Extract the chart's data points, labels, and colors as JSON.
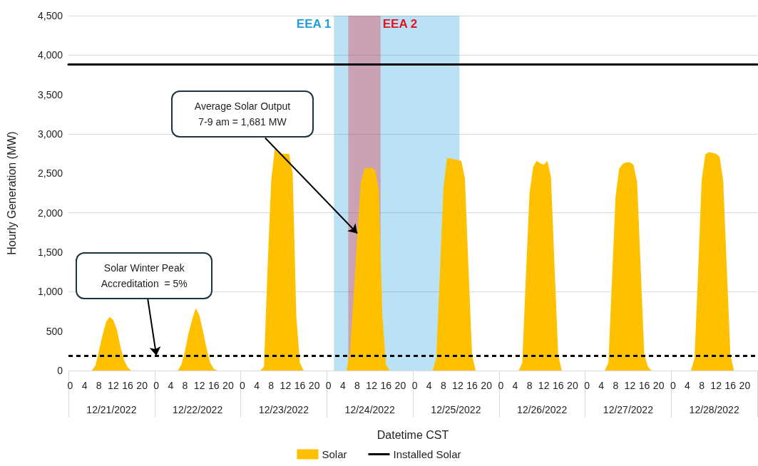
{
  "chart_data": {
    "type": "area",
    "xlabel": "Datetime CST",
    "ylabel": "Hourly Generation (MW)",
    "x": [
      "2022-12-21T00:00",
      "2022-12-21T01:00",
      "2022-12-21T02:00",
      "2022-12-21T03:00",
      "2022-12-21T04:00",
      "2022-12-21T05:00",
      "2022-12-21T06:00",
      "2022-12-21T07:00",
      "2022-12-21T08:00",
      "2022-12-21T09:00",
      "2022-12-21T10:00",
      "2022-12-21T11:00",
      "2022-12-21T12:00",
      "2022-12-21T13:00",
      "2022-12-21T14:00",
      "2022-12-21T15:00",
      "2022-12-21T16:00",
      "2022-12-21T17:00",
      "2022-12-21T18:00",
      "2022-12-21T19:00",
      "2022-12-21T20:00",
      "2022-12-21T21:00",
      "2022-12-21T22:00",
      "2022-12-21T23:00",
      "2022-12-22T00:00",
      "2022-12-22T01:00",
      "2022-12-22T02:00",
      "2022-12-22T03:00",
      "2022-12-22T04:00",
      "2022-12-22T05:00",
      "2022-12-22T06:00",
      "2022-12-22T07:00",
      "2022-12-22T08:00",
      "2022-12-22T09:00",
      "2022-12-22T10:00",
      "2022-12-22T11:00",
      "2022-12-22T12:00",
      "2022-12-22T13:00",
      "2022-12-22T14:00",
      "2022-12-22T15:00",
      "2022-12-22T16:00",
      "2022-12-22T17:00",
      "2022-12-22T18:00",
      "2022-12-22T19:00",
      "2022-12-22T20:00",
      "2022-12-22T21:00",
      "2022-12-22T22:00",
      "2022-12-22T23:00",
      "2022-12-23T00:00",
      "2022-12-23T01:00",
      "2022-12-23T02:00",
      "2022-12-23T03:00",
      "2022-12-23T04:00",
      "2022-12-23T05:00",
      "2022-12-23T06:00",
      "2022-12-23T07:00",
      "2022-12-23T08:00",
      "2022-12-23T09:00",
      "2022-12-23T10:00",
      "2022-12-23T11:00",
      "2022-12-23T12:00",
      "2022-12-23T13:00",
      "2022-12-23T14:00",
      "2022-12-23T15:00",
      "2022-12-23T16:00",
      "2022-12-23T17:00",
      "2022-12-23T18:00",
      "2022-12-23T19:00",
      "2022-12-23T20:00",
      "2022-12-23T21:00",
      "2022-12-23T22:00",
      "2022-12-23T23:00",
      "2022-12-24T00:00",
      "2022-12-24T01:00",
      "2022-12-24T02:00",
      "2022-12-24T03:00",
      "2022-12-24T04:00",
      "2022-12-24T05:00",
      "2022-12-24T06:00",
      "2022-12-24T07:00",
      "2022-12-24T08:00",
      "2022-12-24T09:00",
      "2022-12-24T10:00",
      "2022-12-24T11:00",
      "2022-12-24T12:00",
      "2022-12-24T13:00",
      "2022-12-24T14:00",
      "2022-12-24T15:00",
      "2022-12-24T16:00",
      "2022-12-24T17:00",
      "2022-12-24T18:00",
      "2022-12-24T19:00",
      "2022-12-24T20:00",
      "2022-12-24T21:00",
      "2022-12-24T22:00",
      "2022-12-24T23:00",
      "2022-12-25T00:00",
      "2022-12-25T01:00",
      "2022-12-25T02:00",
      "2022-12-25T03:00",
      "2022-12-25T04:00",
      "2022-12-25T05:00",
      "2022-12-25T06:00",
      "2022-12-25T07:00",
      "2022-12-25T08:00",
      "2022-12-25T09:00",
      "2022-12-25T10:00",
      "2022-12-25T11:00",
      "2022-12-25T12:00",
      "2022-12-25T13:00",
      "2022-12-25T14:00",
      "2022-12-25T15:00",
      "2022-12-25T16:00",
      "2022-12-25T17:00",
      "2022-12-25T18:00",
      "2022-12-25T19:00",
      "2022-12-25T20:00",
      "2022-12-25T21:00",
      "2022-12-25T22:00",
      "2022-12-25T23:00",
      "2022-12-26T00:00",
      "2022-12-26T01:00",
      "2022-12-26T02:00",
      "2022-12-26T03:00",
      "2022-12-26T04:00",
      "2022-12-26T05:00",
      "2022-12-26T06:00",
      "2022-12-26T07:00",
      "2022-12-26T08:00",
      "2022-12-26T09:00",
      "2022-12-26T10:00",
      "2022-12-26T11:00",
      "2022-12-26T12:00",
      "2022-12-26T13:00",
      "2022-12-26T14:00",
      "2022-12-26T15:00",
      "2022-12-26T16:00",
      "2022-12-26T17:00",
      "2022-12-26T18:00",
      "2022-12-26T19:00",
      "2022-12-26T20:00",
      "2022-12-26T21:00",
      "2022-12-26T22:00",
      "2022-12-26T23:00",
      "2022-12-27T00:00",
      "2022-12-27T01:00",
      "2022-12-27T02:00",
      "2022-12-27T03:00",
      "2022-12-27T04:00",
      "2022-12-27T05:00",
      "2022-12-27T06:00",
      "2022-12-27T07:00",
      "2022-12-27T08:00",
      "2022-12-27T09:00",
      "2022-12-27T10:00",
      "2022-12-27T11:00",
      "2022-12-27T12:00",
      "2022-12-27T13:00",
      "2022-12-27T14:00",
      "2022-12-27T15:00",
      "2022-12-27T16:00",
      "2022-12-27T17:00",
      "2022-12-27T18:00",
      "2022-12-27T19:00",
      "2022-12-27T20:00",
      "2022-12-27T21:00",
      "2022-12-27T22:00",
      "2022-12-27T23:00",
      "2022-12-28T00:00",
      "2022-12-28T01:00",
      "2022-12-28T02:00",
      "2022-12-28T03:00",
      "2022-12-28T04:00",
      "2022-12-28T05:00",
      "2022-12-28T06:00",
      "2022-12-28T07:00",
      "2022-12-28T08:00",
      "2022-12-28T09:00",
      "2022-12-28T10:00",
      "2022-12-28T11:00",
      "2022-12-28T12:00",
      "2022-12-28T13:00",
      "2022-12-28T14:00",
      "2022-12-28T15:00",
      "2022-12-28T16:00",
      "2022-12-28T17:00",
      "2022-12-28T18:00",
      "2022-12-28T19:00",
      "2022-12-28T20:00",
      "2022-12-28T21:00",
      "2022-12-28T22:00",
      "2022-12-28T23:00"
    ],
    "series": [
      {
        "name": "Solar",
        "color": "#ffc000",
        "values": [
          0,
          0,
          0,
          0,
          0,
          0,
          0,
          60,
          250,
          450,
          620,
          680,
          640,
          520,
          300,
          130,
          40,
          0,
          0,
          0,
          0,
          0,
          0,
          0,
          0,
          0,
          0,
          0,
          0,
          0,
          0,
          80,
          250,
          480,
          650,
          790,
          700,
          500,
          280,
          100,
          20,
          0,
          0,
          0,
          0,
          0,
          0,
          0,
          0,
          0,
          0,
          0,
          0,
          0,
          50,
          1300,
          2400,
          2810,
          2760,
          2750,
          2750,
          2750,
          2500,
          700,
          100,
          0,
          0,
          0,
          0,
          0,
          0,
          0,
          0,
          0,
          0,
          0,
          0,
          0,
          250,
          950,
          1700,
          2390,
          2560,
          2570,
          2570,
          2540,
          2290,
          700,
          80,
          0,
          0,
          0,
          0,
          0,
          0,
          0,
          0,
          0,
          0,
          0,
          0,
          0,
          150,
          1200,
          2300,
          2690,
          2690,
          2680,
          2670,
          2660,
          2440,
          1300,
          200,
          0,
          0,
          0,
          0,
          0,
          0,
          0,
          0,
          0,
          0,
          0,
          0,
          0,
          100,
          1200,
          2240,
          2580,
          2660,
          2630,
          2610,
          2660,
          2450,
          1300,
          200,
          0,
          0,
          0,
          0,
          0,
          0,
          0,
          0,
          0,
          0,
          0,
          0,
          0,
          100,
          1150,
          2210,
          2560,
          2620,
          2640,
          2640,
          2610,
          2390,
          1300,
          200,
          50,
          0,
          0,
          0,
          0,
          0,
          0,
          0,
          0,
          0,
          0,
          0,
          0,
          150,
          1250,
          2420,
          2740,
          2770,
          2760,
          2750,
          2710,
          2410,
          1300,
          200,
          0,
          0,
          0,
          0,
          0,
          0,
          0
        ]
      },
      {
        "name": "Installed Solar",
        "type": "line",
        "color": "#000000",
        "x": [
          "2022-12-20T23:30",
          "2022-12-28T23:30"
        ],
        "values": [
          3880,
          3880
        ]
      }
    ],
    "ref_lines": [
      {
        "axis": "y",
        "value": 190,
        "color": "#000000",
        "line_style": "dashed"
      }
    ],
    "bands": [
      {
        "axis": "x",
        "from": "2022-12-24T01:30",
        "to": "2022-12-25T12:30",
        "label": "EEA 1",
        "color": "#1f9bde"
      },
      {
        "axis": "x",
        "from": "2022-12-24T05:30",
        "to": "2022-12-24T14:30",
        "label": "EEA 2",
        "color": "#e8101f"
      }
    ],
    "annotations": [
      {
        "text": "Average Solar Output\n7-9 am = 1,681 MW",
        "x": "2022-12-24T08:00",
        "y": 1740
      },
      {
        "text": "Solar Winter Peak\nAccreditation  = 5%",
        "x": "2022-12-22T00:00",
        "y": 190
      }
    ],
    "ylim": [
      0,
      4500
    ],
    "yticks": [
      0,
      500,
      {
        "value": 1000,
        "label": "1,000"
      },
      {
        "value": 1500,
        "label": "1,500"
      },
      {
        "value": 2000,
        "label": "2,000"
      },
      {
        "value": 2500,
        "label": "2,500"
      },
      {
        "value": 3000,
        "label": "3,000"
      },
      {
        "value": 3500,
        "label": "3,500"
      },
      {
        "value": 4000,
        "label": "4,000"
      },
      {
        "value": 4500,
        "label": "4,500"
      }
    ],
    "xlim": [
      "2022-12-20T23:30",
      "2022-12-28T23:30"
    ],
    "xticks": [
      {
        "value": "2022-12-21T00:00",
        "label": "0"
      },
      {
        "value": "2022-12-21T04:00",
        "label": "4"
      },
      {
        "value": "2022-12-21T08:00",
        "label": "8"
      },
      {
        "value": "2022-12-21T12:00",
        "label": "12"
      },
      {
        "value": "2022-12-21T16:00",
        "label": "16"
      },
      {
        "value": "2022-12-21T20:00",
        "label": "20"
      },
      {
        "value": "2022-12-22T00:00",
        "label": "0"
      },
      {
        "value": "2022-12-22T04:00",
        "label": "4"
      },
      {
        "value": "2022-12-22T08:00",
        "label": "8"
      },
      {
        "value": "2022-12-22T12:00",
        "label": "12"
      },
      {
        "value": "2022-12-22T16:00",
        "label": "16"
      },
      {
        "value": "2022-12-22T20:00",
        "label": "20"
      },
      {
        "value": "2022-12-23T00:00",
        "label": "0"
      },
      {
        "value": "2022-12-23T04:00",
        "label": "4"
      },
      {
        "value": "2022-12-23T08:00",
        "label": "8"
      },
      {
        "value": "2022-12-23T12:00",
        "label": "12"
      },
      {
        "value": "2022-12-23T16:00",
        "label": "16"
      },
      {
        "value": "2022-12-23T20:00",
        "label": "20"
      },
      {
        "value": "2022-12-24T00:00",
        "label": "0"
      },
      {
        "value": "2022-12-24T04:00",
        "label": "4"
      },
      {
        "value": "2022-12-24T08:00",
        "label": "8"
      },
      {
        "value": "2022-12-24T12:00",
        "label": "12"
      },
      {
        "value": "2022-12-24T16:00",
        "label": "16"
      },
      {
        "value": "2022-12-24T20:00",
        "label": "20"
      },
      {
        "value": "2022-12-25T00:00",
        "label": "0"
      },
      {
        "value": "2022-12-25T04:00",
        "label": "4"
      },
      {
        "value": "2022-12-25T08:00",
        "label": "8"
      },
      {
        "value": "2022-12-25T12:00",
        "label": "12"
      },
      {
        "value": "2022-12-25T16:00",
        "label": "16"
      },
      {
        "value": "2022-12-25T20:00",
        "label": "20"
      },
      {
        "value": "2022-12-26T00:00",
        "label": "0"
      },
      {
        "value": "2022-12-26T04:00",
        "label": "4"
      },
      {
        "value": "2022-12-26T08:00",
        "label": "8"
      },
      {
        "value": "2022-12-26T12:00",
        "label": "12"
      },
      {
        "value": "2022-12-26T16:00",
        "label": "16"
      },
      {
        "value": "2022-12-26T20:00",
        "label": "20"
      },
      {
        "value": "2022-12-27T00:00",
        "label": "0"
      },
      {
        "value": "2022-12-27T04:00",
        "label": "4"
      },
      {
        "value": "2022-12-27T08:00",
        "label": "8"
      },
      {
        "value": "2022-12-27T12:00",
        "label": "12"
      },
      {
        "value": "2022-12-27T16:00",
        "label": "16"
      },
      {
        "value": "2022-12-27T20:00",
        "label": "20"
      },
      {
        "value": "2022-12-28T00:00",
        "label": "0"
      },
      {
        "value": "2022-12-28T04:00",
        "label": "4"
      },
      {
        "value": "2022-12-28T08:00",
        "label": "8"
      },
      {
        "value": "2022-12-28T12:00",
        "label": "12"
      },
      {
        "value": "2022-12-28T16:00",
        "label": "16"
      },
      {
        "value": "2022-12-28T20:00",
        "label": "20"
      }
    ],
    "x2lim": [
      "2022-12-20T23:30",
      "2022-12-28T23:30"
    ],
    "x2ticks": [
      {
        "value": "2022-12-21T11:30",
        "label": "12/21/2022"
      },
      {
        "value": "2022-12-22T11:30",
        "label": "12/22/2022"
      },
      {
        "value": "2022-12-23T11:30",
        "label": "12/23/2022"
      },
      {
        "value": "2022-12-24T11:30",
        "label": "12/24/2022"
      },
      {
        "value": "2022-12-25T11:30",
        "label": "12/25/2022"
      },
      {
        "value": "2022-12-26T11:30",
        "label": "12/26/2022"
      },
      {
        "value": "2022-12-27T11:30",
        "label": "12/27/2022"
      },
      {
        "value": "2022-12-28T11:30",
        "label": "12/28/2022"
      }
    ],
    "grid": "y",
    "legend": "bottom",
    "marker": "none"
  }
}
